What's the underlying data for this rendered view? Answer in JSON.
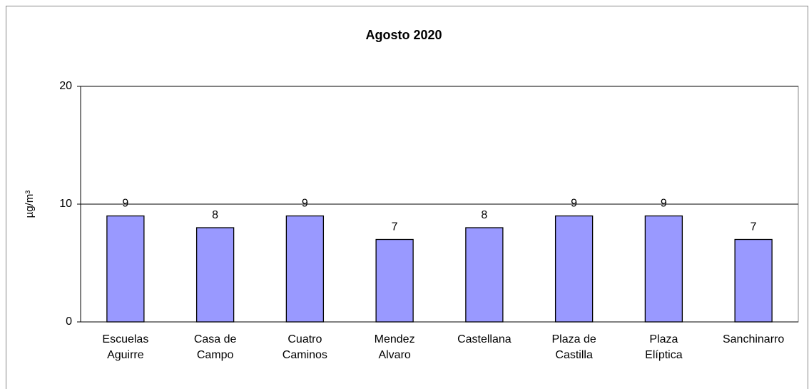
{
  "chart_data": {
    "type": "bar",
    "title": "Agosto 2020",
    "y_label": "µg/m³",
    "categories": [
      "Escuelas Aguirre",
      "Casa de Campo",
      "Cuatro Caminos",
      "Mendez Alvaro",
      "Castellana",
      "Plaza de Castilla",
      "Plaza Elíptica",
      "Sanchinarro"
    ],
    "values": [
      9,
      8,
      9,
      7,
      8,
      9,
      9,
      7
    ],
    "color": "#9999ff",
    "ylim": [
      0,
      20
    ],
    "yticks": [
      0,
      10,
      20
    ],
    "grid": true
  }
}
